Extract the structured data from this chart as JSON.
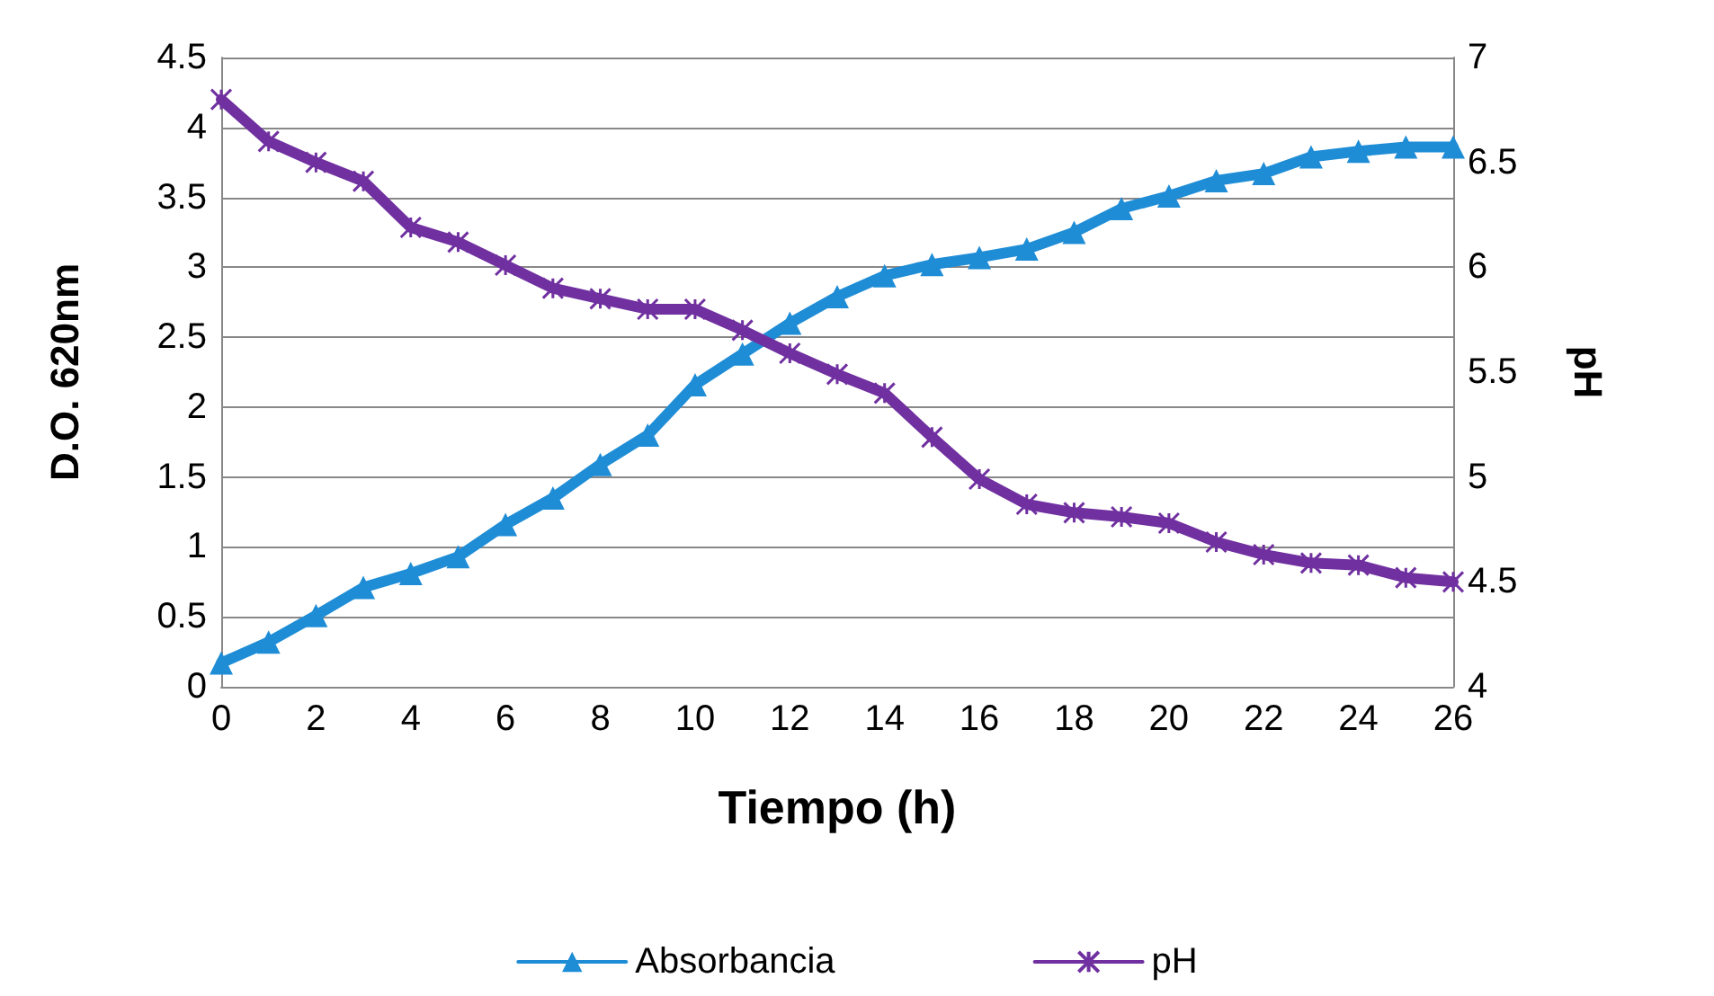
{
  "chart_data": {
    "type": "line",
    "xlabel": "Tiempo (h)",
    "ylabel": "D.O. 620nm",
    "y2label": "pH",
    "x": [
      0,
      1,
      2,
      3,
      4,
      5,
      6,
      7,
      8,
      9,
      10,
      11,
      12,
      13,
      14,
      15,
      16,
      17,
      18,
      19,
      20,
      21,
      22,
      23,
      24,
      25,
      26
    ],
    "series": [
      {
        "name": "Absorbancia",
        "color": "#1f8dd6",
        "marker": "triangle",
        "values": [
          0.17,
          0.32,
          0.51,
          0.71,
          0.81,
          0.93,
          1.16,
          1.35,
          1.59,
          1.8,
          2.16,
          2.38,
          2.6,
          2.79,
          2.94,
          3.02,
          3.07,
          3.13,
          3.25,
          3.42,
          3.51,
          3.62,
          3.67,
          3.79,
          3.83,
          3.86,
          3.86
        ]
      },
      {
        "name": "pH",
        "color": "#7030a0",
        "marker": "cross",
        "axis": "y2",
        "values": [
          6.8,
          6.6,
          6.5,
          6.41,
          6.19,
          6.12,
          6.01,
          5.9,
          5.85,
          5.8,
          5.8,
          5.7,
          5.59,
          5.49,
          5.4,
          5.19,
          4.99,
          4.87,
          4.83,
          4.81,
          4.78,
          4.69,
          4.63,
          4.59,
          4.58,
          4.52,
          4.5
        ]
      }
    ],
    "xlim": [
      0,
      26
    ],
    "xticks": [
      0,
      2,
      4,
      6,
      8,
      10,
      12,
      14,
      16,
      18,
      20,
      22,
      24,
      26
    ],
    "ylim": [
      0,
      4.5
    ],
    "yticks": [
      0,
      0.5,
      1,
      1.5,
      2,
      2.5,
      3,
      3.5,
      4,
      4.5
    ],
    "y2lim": [
      4,
      7
    ],
    "y2ticks": [
      4,
      4.5,
      5,
      5.5,
      6,
      6.5,
      7
    ],
    "grid": "y",
    "legend": "bottom",
    "line_style": "solid"
  }
}
